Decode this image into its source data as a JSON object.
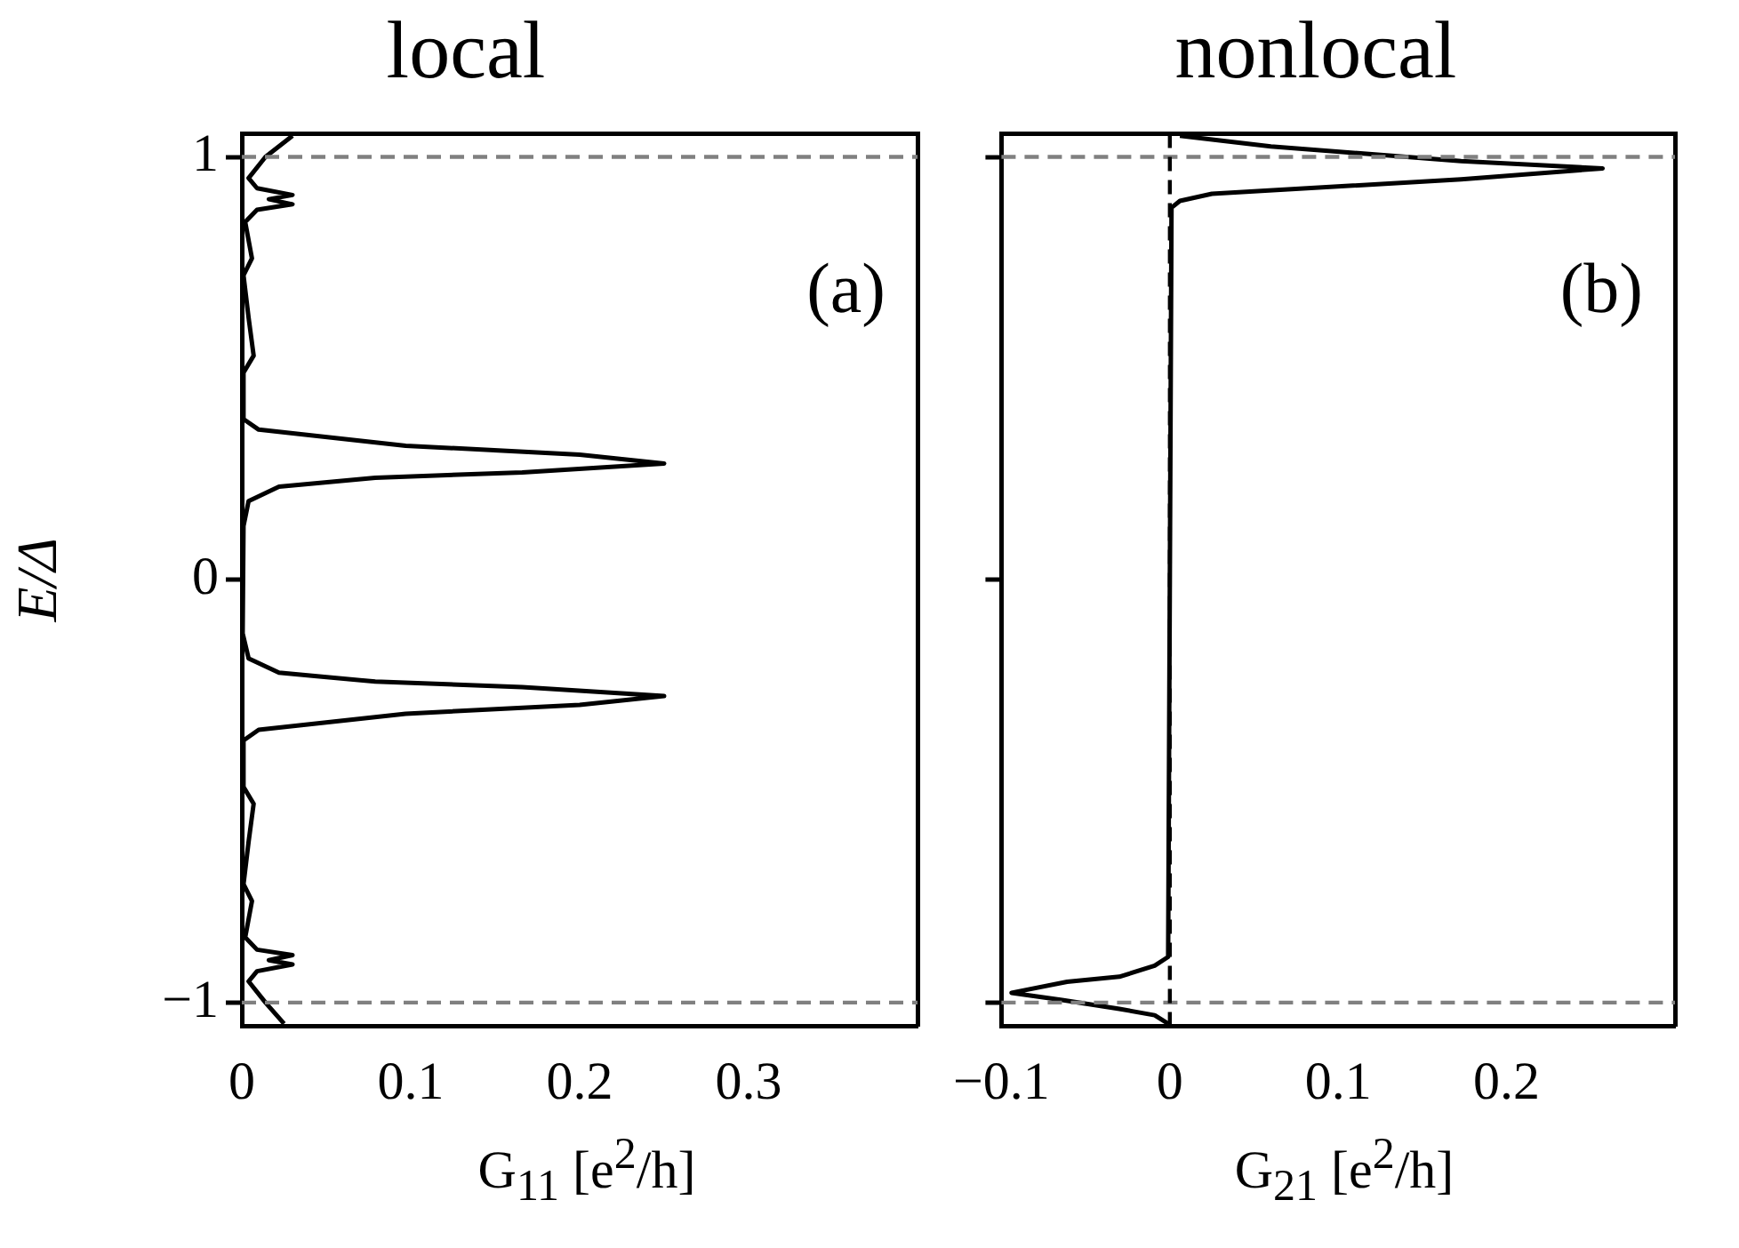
{
  "chart_data": [
    {
      "type": "line",
      "title": "local",
      "xlabel": "G$_{11}$ [e$^{2}$/h]",
      "ylabel": "E/Δ",
      "annotations": [
        "(a)"
      ],
      "xlim": [
        0,
        0.4
      ],
      "xticks": [
        0,
        0.1,
        0.2,
        0.3
      ],
      "ylim": [
        -1.055,
        1.055
      ],
      "yticks": [
        {
          "value": -1,
          "label": "−1"
        },
        0,
        1
      ],
      "grid": false,
      "legend": false,
      "marker": "none",
      "line_style": "solid",
      "ref_lines": [
        {
          "axis": "y",
          "value": 1,
          "color": "#808080",
          "line_style": "dashed"
        },
        {
          "axis": "y",
          "value": -1,
          "color": "#808080",
          "line_style": "dashed"
        }
      ],
      "series": [
        {
          "color": "#000000",
          "x": [
            0.03,
            0.014,
            0.004,
            0.009,
            0.03,
            0.016,
            0.03,
            0.009,
            0.002,
            0.006,
            0.001,
            0.004,
            0.007,
            0.001,
            0.001,
            0.01,
            0.097,
            0.2,
            0.25,
            0.166,
            0.079,
            0.022,
            0.004,
            0.001,
            0,
            0.001,
            0.004,
            0.022,
            0.079,
            0.166,
            0.25,
            0.2,
            0.097,
            0.01,
            0.001,
            0.001,
            0.007,
            0.004,
            0.001,
            0.006,
            0.002,
            0.009,
            0.03,
            0.016,
            0.03,
            0.009,
            0.004,
            0.014,
            0.025
          ],
          "values": [
            1.05,
            1.0,
            0.95,
            0.926,
            0.91,
            0.9,
            0.888,
            0.875,
            0.846,
            0.76,
            0.72,
            0.62,
            0.53,
            0.49,
            0.38,
            0.355,
            0.317,
            0.296,
            0.275,
            0.254,
            0.241,
            0.22,
            0.186,
            0.127,
            0,
            -0.127,
            -0.186,
            -0.22,
            -0.241,
            -0.254,
            -0.275,
            -0.296,
            -0.317,
            -0.355,
            -0.38,
            -0.49,
            -0.53,
            -0.62,
            -0.72,
            -0.76,
            -0.846,
            -0.875,
            -0.888,
            -0.9,
            -0.91,
            -0.926,
            -0.95,
            -1.0,
            -1.05
          ]
        }
      ]
    },
    {
      "type": "line",
      "title": "nonlocal",
      "xlabel": "G$_{21}$ [e$^{2}$/h]",
      "annotations": [
        "(b)"
      ],
      "xlim": [
        -0.1,
        0.3
      ],
      "xticks": [
        {
          "value": -0.1,
          "label": "−0.1"
        },
        0,
        0.1,
        0.2
      ],
      "ylim": [
        -1.055,
        1.055
      ],
      "yticks": [
        -1,
        0,
        1
      ],
      "tick_labels": "x",
      "grid": false,
      "legend": false,
      "marker": "none",
      "line_style": "solid",
      "ref_lines": [
        {
          "axis": "y",
          "value": 1,
          "color": "#808080",
          "line_style": "dashed"
        },
        {
          "axis": "y",
          "value": -1,
          "color": "#808080",
          "line_style": "dashed"
        },
        {
          "axis": "x",
          "value": 0,
          "color": "#000000",
          "line_style": "dashed"
        }
      ],
      "series": [
        {
          "color": "#000000",
          "x": [
            0.006,
            0.06,
            0.173,
            0.257,
            0.173,
            0.025,
            0.006,
            0.001,
            0,
            -0.001,
            -0.009,
            -0.03,
            -0.061,
            -0.094,
            -0.064,
            -0.03,
            -0.009,
            -0.001
          ],
          "values": [
            1.05,
            1.025,
            0.99,
            0.973,
            0.947,
            0.913,
            0.896,
            0.88,
            0,
            -0.892,
            -0.913,
            -0.939,
            -0.951,
            -0.977,
            -0.994,
            -1.015,
            -1.03,
            -1.05
          ]
        }
      ]
    }
  ]
}
